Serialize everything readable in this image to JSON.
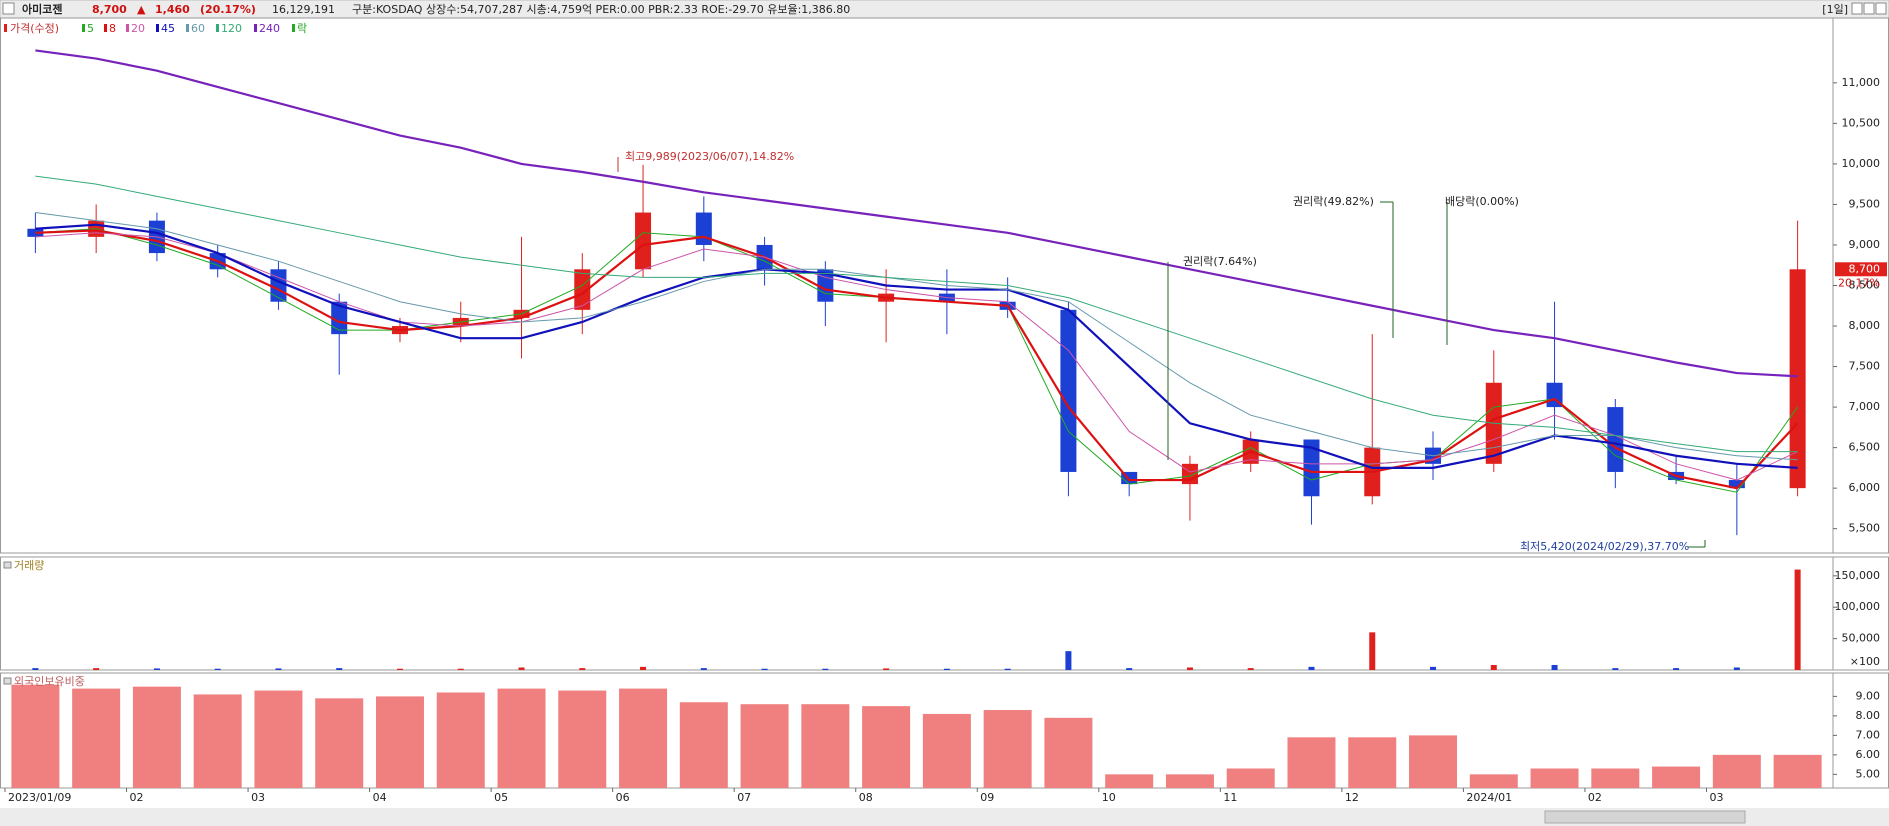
{
  "header": {
    "name": "아미코젠",
    "price": "8,700",
    "arrow": "▲",
    "change": "1,460",
    "change_pct": "(20.17%)",
    "volume": "16,129,191",
    "info": "구분:KOSDAQ 상장수:54,707,287 시총:4,759억 PER:0.00 PBR:2.33 ROE:-29.70 유보율:1,386.80",
    "period": "[1일]"
  },
  "chart_data": [
    {
      "type": "candlestick",
      "price_label": "가격(수정)",
      "ex_label": "락",
      "last_change": "20.17%",
      "up_color": "#e0201c",
      "down_color": "#1c3fd4",
      "categories": [
        "2023/01/09",
        null,
        "02",
        null,
        "03",
        null,
        "04",
        null,
        "05",
        null,
        "06",
        null,
        "07",
        null,
        "08",
        null,
        "09",
        null,
        "10",
        null,
        "11",
        null,
        "12",
        null,
        "2024/01",
        null,
        "02",
        null,
        "03",
        null
      ],
      "open": [
        9200,
        9100,
        9300,
        8900,
        8700,
        8300,
        7900,
        8000,
        8100,
        8200,
        8700,
        9400,
        9000,
        8700,
        8300,
        8400,
        8300,
        8200,
        6200,
        6050,
        6300,
        6600,
        5900,
        6500,
        6300,
        7300,
        7000,
        6200,
        6100,
        6000
      ],
      "high": [
        9400,
        9500,
        9400,
        9000,
        8800,
        8400,
        8100,
        8300,
        9100,
        8900,
        9989,
        9600,
        9100,
        8800,
        8700,
        8700,
        8600,
        8300,
        6200,
        6400,
        6700,
        6600,
        7900,
        6700,
        7700,
        8300,
        7100,
        6400,
        6300,
        9300
      ],
      "low": [
        8900,
        8900,
        8800,
        8600,
        8200,
        7400,
        7800,
        7800,
        7600,
        7900,
        8600,
        8800,
        8500,
        8000,
        7800,
        7900,
        8100,
        5900,
        5900,
        5600,
        6200,
        5550,
        5800,
        6100,
        6200,
        6600,
        6000,
        6050,
        5420,
        5900
      ],
      "close": [
        9100,
        9300,
        8900,
        8700,
        8300,
        7900,
        8000,
        8100,
        8200,
        8700,
        9400,
        9000,
        8700,
        8300,
        8400,
        8300,
        8200,
        6200,
        6050,
        6300,
        6600,
        5900,
        6500,
        6300,
        7300,
        7000,
        6200,
        6100,
        6000,
        8700
      ],
      "series": [
        {
          "name": "5",
          "color": "#22aa22",
          "width": 1,
          "values": [
            9150,
            9200,
            9000,
            8750,
            8350,
            7950,
            7950,
            8050,
            8150,
            8500,
            9150,
            9100,
            8800,
            8400,
            8350,
            8300,
            8250,
            6700,
            6050,
            6150,
            6500,
            6100,
            6300,
            6350,
            7000,
            7100,
            6400,
            6100,
            5950,
            7000
          ]
        },
        {
          "name": "8",
          "color": "#dd1111",
          "width": 2.2,
          "values": [
            9150,
            9180,
            9050,
            8800,
            8450,
            8050,
            7950,
            8000,
            8100,
            8400,
            9000,
            9100,
            8850,
            8450,
            8350,
            8300,
            8250,
            7000,
            6100,
            6100,
            6450,
            6200,
            6200,
            6350,
            6850,
            7100,
            6500,
            6150,
            6000,
            6800
          ]
        },
        {
          "name": "20",
          "color": "#cc55aa",
          "width": 1,
          "values": [
            9100,
            9150,
            9100,
            8900,
            8600,
            8300,
            8050,
            8000,
            8050,
            8250,
            8700,
            8950,
            8850,
            8600,
            8450,
            8350,
            8300,
            7700,
            6700,
            6200,
            6350,
            6300,
            6300,
            6350,
            6600,
            6900,
            6650,
            6300,
            6100,
            6450
          ]
        },
        {
          "name": "45",
          "color": "#1111bb",
          "width": 2.2,
          "values": [
            9200,
            9250,
            9150,
            8900,
            8550,
            8250,
            8050,
            7850,
            7850,
            8050,
            8350,
            8600,
            8700,
            8650,
            8500,
            8450,
            8450,
            8200,
            7500,
            6800,
            6600,
            6500,
            6250,
            6250,
            6400,
            6650,
            6550,
            6400,
            6300,
            6250
          ]
        },
        {
          "name": "60",
          "color": "#6699aa",
          "width": 1,
          "values": [
            9400,
            9300,
            9200,
            9000,
            8800,
            8550,
            8300,
            8150,
            8050,
            8100,
            8300,
            8550,
            8700,
            8700,
            8600,
            8500,
            8450,
            8300,
            7800,
            7300,
            6900,
            6700,
            6500,
            6400,
            6500,
            6650,
            6650,
            6500,
            6400,
            6350
          ]
        },
        {
          "name": "120",
          "color": "#33aa77",
          "width": 1,
          "values": [
            9850,
            9750,
            9600,
            9450,
            9300,
            9150,
            9000,
            8850,
            8750,
            8650,
            8600,
            8600,
            8650,
            8650,
            8600,
            8550,
            8500,
            8350,
            8100,
            7850,
            7600,
            7350,
            7100,
            6900,
            6800,
            6750,
            6650,
            6550,
            6450,
            6450
          ]
        },
        {
          "name": "240",
          "color": "#7722bb",
          "width": 2.2,
          "values": [
            11400,
            11300,
            11150,
            10950,
            10750,
            10550,
            10350,
            10200,
            10000,
            9900,
            9780,
            9650,
            9550,
            9450,
            9350,
            9250,
            9150,
            9000,
            8850,
            8700,
            8550,
            8400,
            8250,
            8100,
            7950,
            7850,
            7700,
            7550,
            7420,
            7380
          ]
        }
      ],
      "annotations": [
        "최고9,989(2023/06/07),14.82%",
        "권리락(7.64%)",
        "권리락(49.82%)",
        "배당락(0.00%)",
        "최저5,420(2024/02/29),37.70%"
      ],
      "ylim": [
        5200,
        11800
      ],
      "yticks": [
        {
          "value": 5500,
          "label": "5,500"
        },
        {
          "value": 6000,
          "label": "6,000"
        },
        {
          "value": 6500,
          "label": "6,500"
        },
        {
          "value": 7000,
          "label": "7,000"
        },
        {
          "value": 7500,
          "label": "7,500"
        },
        {
          "value": 8000,
          "label": "8,000"
        },
        {
          "value": 8500,
          "label": "8,500"
        },
        {
          "value": 9000,
          "label": "9,000"
        },
        {
          "value": 9500,
          "label": "9,500"
        },
        {
          "value": 10000,
          "label": "10,000"
        },
        {
          "value": 10500,
          "label": "10,500"
        },
        {
          "value": 11000,
          "label": "11,000"
        }
      ]
    },
    {
      "type": "bar",
      "title": "거래량",
      "unit_label": "×100",
      "values": [
        3000,
        3000,
        2500,
        2000,
        2500,
        3000,
        2000,
        2000,
        4000,
        3000,
        5000,
        3000,
        2000,
        2000,
        2500,
        2000,
        2000,
        30000,
        3000,
        4000,
        3000,
        5000,
        60000,
        5000,
        8000,
        8000,
        3000,
        3000,
        4000,
        160000
      ],
      "ylim": [
        0,
        180000
      ],
      "yticks": [
        {
          "value": 50000,
          "label": "50,000"
        },
        {
          "value": 100000,
          "label": "100,000"
        },
        {
          "value": 150000,
          "label": "150,000"
        }
      ]
    },
    {
      "type": "bar",
      "title": "외국인보유비중",
      "color": "#f08080",
      "values": [
        9.6,
        9.4,
        9.5,
        9.1,
        9.3,
        8.9,
        9.0,
        9.2,
        9.4,
        9.3,
        9.4,
        8.7,
        8.6,
        8.6,
        8.5,
        8.1,
        8.3,
        7.9,
        5.0,
        5.0,
        5.3,
        6.9,
        6.9,
        7.0,
        5.0,
        5.3,
        5.3,
        5.4,
        6.0,
        6.0
      ],
      "ylim": [
        4.3,
        10.2
      ],
      "yticks": [
        {
          "value": 5,
          "label": "5.00"
        },
        {
          "value": 6,
          "label": "6.00"
        },
        {
          "value": 7,
          "label": "7.00"
        },
        {
          "value": 8,
          "label": "8.00"
        },
        {
          "value": 9,
          "label": "9.00"
        }
      ]
    }
  ]
}
